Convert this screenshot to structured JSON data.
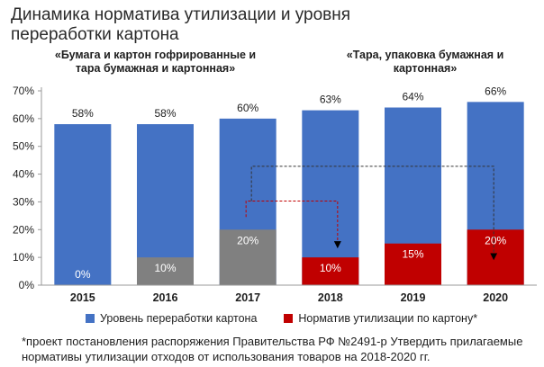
{
  "title": "Динамика норматива утилизации и уровня переработки картона",
  "group_labels": {
    "left": "«Бумага и картон гофрированные и тара бумажная и картонная»",
    "right": "«Тара, упаковка бумажная и картонная»"
  },
  "footnote": "*проект постановления распоряжения Правительства РФ №2491-р Утвердить прилагаемые нормативы утилизации отходов от использования товаров на 2018-2020 гг.",
  "colors": {
    "recycling": "#4472C4",
    "norm_grey": "#808080",
    "norm_red": "#C00000",
    "arrow": "#333333"
  },
  "chart_data": {
    "type": "bar",
    "categories": [
      "2015",
      "2016",
      "2017",
      "2018",
      "2019",
      "2020"
    ],
    "series": [
      {
        "name": "Уровень переработки картона",
        "values": [
          58,
          58,
          60,
          63,
          64,
          66
        ],
        "labels": [
          "58%",
          "58%",
          "60%",
          "63%",
          "64%",
          "66%"
        ]
      },
      {
        "name": "Норматив утилизации по картону*",
        "values": [
          0,
          10,
          20,
          10,
          15,
          20
        ],
        "labels": [
          "0%",
          "10%",
          "20%",
          "10%",
          "15%",
          "20%"
        ],
        "bar_colors": [
          "grey",
          "grey",
          "grey",
          "red",
          "red",
          "red"
        ]
      }
    ],
    "ylim": [
      0,
      70
    ],
    "yticks": [
      "0%",
      "10%",
      "20%",
      "30%",
      "40%",
      "50%",
      "60%",
      "70%"
    ],
    "grid": false,
    "legend_position": "bottom"
  }
}
